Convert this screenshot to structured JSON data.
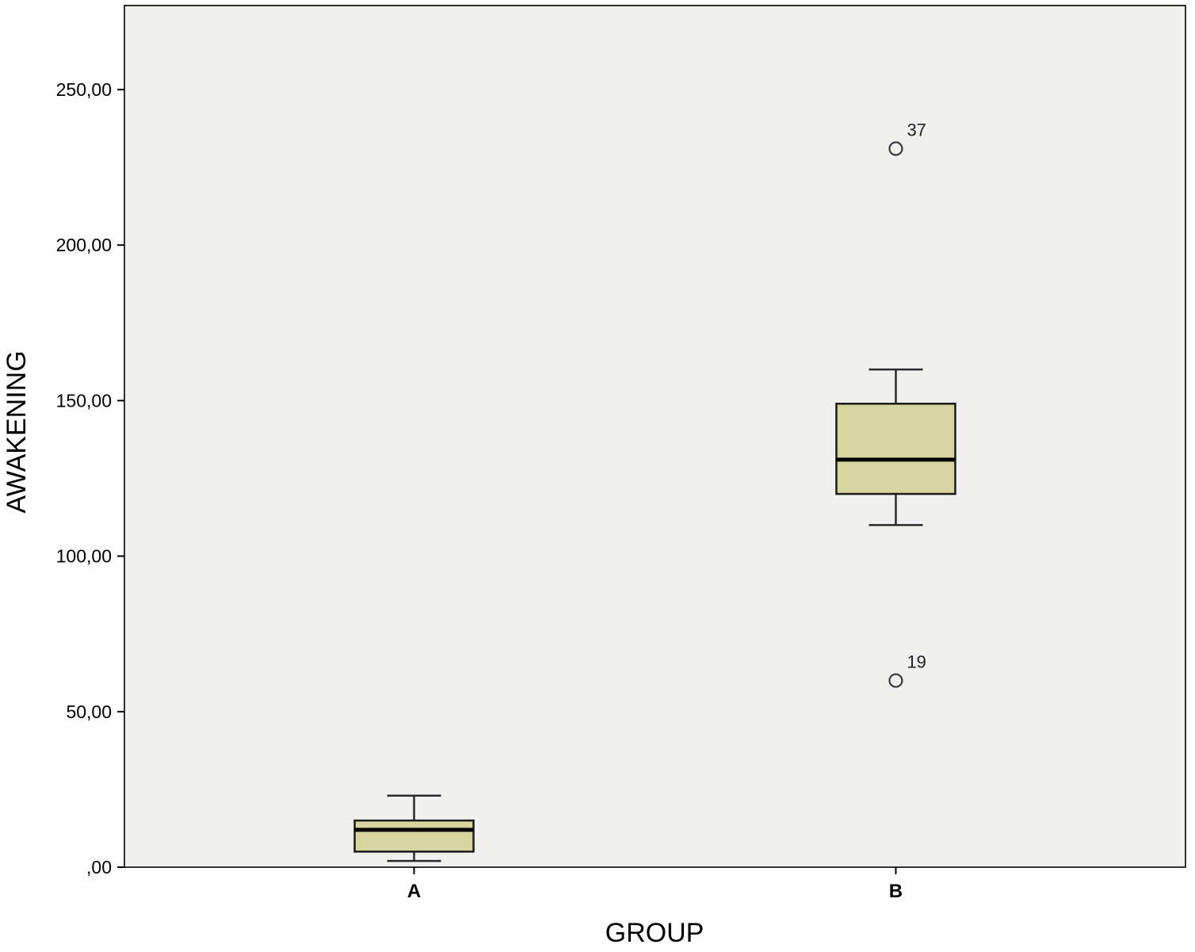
{
  "chart_data": {
    "type": "boxplot",
    "title": "",
    "xlabel": "GROUP",
    "ylabel": "AWAKENING",
    "categories": [
      "A",
      "B"
    ],
    "ylim": [
      0,
      277
    ],
    "yticks": [
      0,
      50,
      100,
      150,
      200,
      250
    ],
    "ytick_labels": [
      ",00",
      "50,00",
      "100,00",
      "150,00",
      "200,00",
      "250,00"
    ],
    "grid": false,
    "legend": "none",
    "series": [
      {
        "category": "A",
        "whisker_low": 2,
        "q1": 5,
        "median": 12,
        "q3": 15,
        "whisker_high": 23,
        "outliers": []
      },
      {
        "category": "B",
        "whisker_low": 110,
        "q1": 120,
        "median": 131,
        "q3": 149,
        "whisker_high": 160,
        "outliers": [
          {
            "value": 231,
            "label": "37"
          },
          {
            "value": 60,
            "label": "19"
          }
        ]
      }
    ],
    "colors": {
      "box_fill": "#d8d4a0",
      "box_stroke": "#1a1a1a",
      "median": "#000000",
      "whisker": "#2a2a2a",
      "outlier_stroke": "#3a3a3a",
      "plot_bg": "#f0f0ee",
      "frame": "#000000"
    }
  }
}
